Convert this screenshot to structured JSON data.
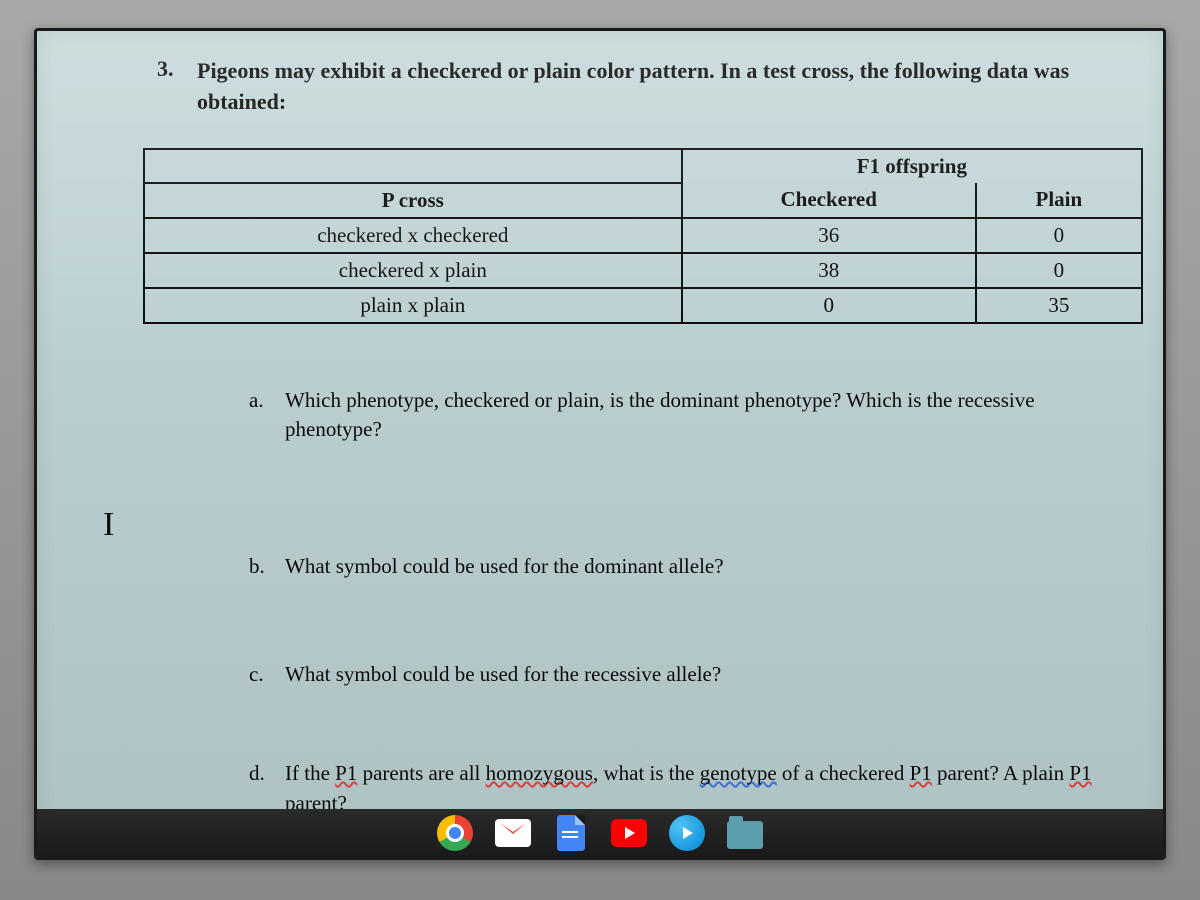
{
  "question": {
    "number": "3.",
    "text": "Pigeons may exhibit a checkered or plain color pattern.  In a test cross, the following data was obtained:"
  },
  "table": {
    "merged_header": "F1 offspring",
    "columns": [
      "P cross",
      "Checkered",
      "Plain"
    ],
    "rows": [
      [
        "checkered x checkered",
        "36",
        "0"
      ],
      [
        "checkered x plain",
        "38",
        "0"
      ],
      [
        "plain x plain",
        "0",
        "35"
      ]
    ]
  },
  "sub_questions": {
    "a": {
      "letter": "a.",
      "text": "Which phenotype, checkered or plain, is the dominant phenotype?  Which is the recessive phenotype?"
    },
    "b": {
      "letter": "b.",
      "text": "What symbol could be used for the dominant allele?"
    },
    "c": {
      "letter": "c.",
      "text": "What symbol could be used for the recessive allele?"
    },
    "d": {
      "letter": "d.",
      "prefix": "If the ",
      "p1": "P1",
      "mid1": " parents are all ",
      "homo": "homozygous",
      "mid2": ", what is the ",
      "geno": "genotype",
      "mid3": " of a checkered ",
      "p1b": "P1",
      "line2a": " parent?  A plain ",
      "p1c": "P1",
      "line2b": " parent?"
    }
  },
  "cursor": "I",
  "colors": {
    "screen_bg": "#c0d3d5",
    "text": "#0a0a0a",
    "frame": "#1a1a1a",
    "outer": "#909090"
  },
  "taskbar_icons": [
    "chrome",
    "gmail",
    "docs",
    "youtube",
    "play",
    "files"
  ]
}
